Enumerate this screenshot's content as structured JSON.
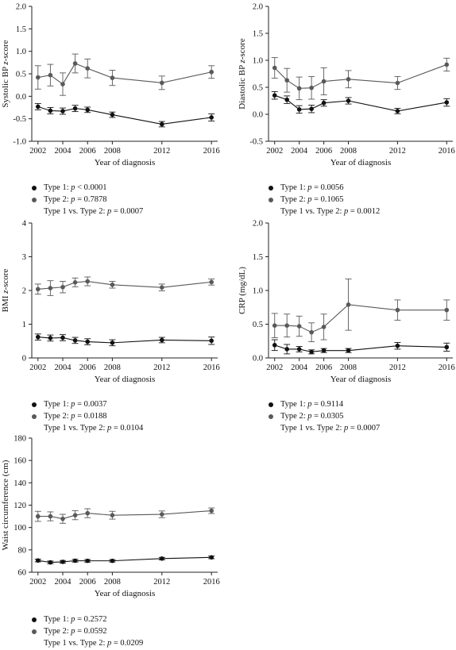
{
  "colors": {
    "type1": "#111111",
    "type2": "#595959",
    "axis": "#222222"
  },
  "chart_data": [
    {
      "id": "sbp",
      "type": "line",
      "ylabel": "Systolic BP z-score",
      "xlabel": "Year of diagnosis",
      "x": [
        2002,
        2003,
        2004,
        2005,
        2006,
        2008,
        2012,
        2016
      ],
      "xticks": [
        2002,
        2004,
        2006,
        2008,
        2012,
        2016
      ],
      "ylim": [
        -1.0,
        2.0
      ],
      "yticks": [
        "-1.0",
        "-0.5",
        "0.0",
        "0.5",
        "1.0",
        "1.5",
        "2.0"
      ],
      "series": [
        {
          "name": "Type 1",
          "values": [
            -0.23,
            -0.32,
            -0.33,
            -0.27,
            -0.3,
            -0.41,
            -0.62,
            -0.47
          ],
          "err": [
            0.07,
            0.07,
            0.07,
            0.07,
            0.06,
            0.06,
            0.06,
            0.08
          ]
        },
        {
          "name": "Type 2",
          "values": [
            0.42,
            0.47,
            0.27,
            0.73,
            0.62,
            0.41,
            0.3,
            0.54
          ],
          "err": [
            0.26,
            0.24,
            0.25,
            0.21,
            0.21,
            0.17,
            0.15,
            0.14
          ]
        }
      ],
      "legend": [
        "Type 1: p < 0.0001",
        "Type 2: p = 0.7878",
        "Type 1 vs. Type 2: p = 0.0007"
      ]
    },
    {
      "id": "dbp",
      "type": "line",
      "ylabel": "Diastolic BP z-score",
      "xlabel": "Year of diagnosis",
      "x": [
        2002,
        2003,
        2004,
        2005,
        2006,
        2008,
        2012,
        2016
      ],
      "xticks": [
        2002,
        2004,
        2006,
        2008,
        2012,
        2016
      ],
      "ylim": [
        -0.5,
        2.0
      ],
      "yticks": [
        "-0.5",
        "0.0",
        "0.5",
        "1.0",
        "1.5",
        "2.0"
      ],
      "series": [
        {
          "name": "Type 1",
          "values": [
            0.35,
            0.27,
            0.09,
            0.1,
            0.21,
            0.25,
            0.06,
            0.22
          ],
          "err": [
            0.07,
            0.07,
            0.07,
            0.07,
            0.06,
            0.06,
            0.05,
            0.07
          ]
        },
        {
          "name": "Type 2",
          "values": [
            0.86,
            0.63,
            0.48,
            0.49,
            0.61,
            0.65,
            0.58,
            0.92
          ],
          "err": [
            0.19,
            0.22,
            0.21,
            0.21,
            0.25,
            0.16,
            0.12,
            0.12
          ]
        }
      ],
      "legend": [
        "Type 1: p = 0.0056",
        "Type 2: p = 0.1065",
        "Type 1 vs. Type 2: p = 0.0012"
      ]
    },
    {
      "id": "bmi",
      "type": "line",
      "ylabel": "BMI z-score",
      "xlabel": "Year of diagnosis",
      "x": [
        2002,
        2003,
        2004,
        2005,
        2006,
        2008,
        2012,
        2016
      ],
      "xticks": [
        2002,
        2004,
        2006,
        2008,
        2012,
        2016
      ],
      "ylim": [
        0,
        4
      ],
      "yticks": [
        "0",
        "1",
        "2",
        "3",
        "4"
      ],
      "series": [
        {
          "name": "Type 1",
          "values": [
            0.62,
            0.59,
            0.6,
            0.52,
            0.48,
            0.45,
            0.53,
            0.51
          ],
          "err": [
            0.09,
            0.09,
            0.09,
            0.09,
            0.09,
            0.09,
            0.08,
            0.11
          ]
        },
        {
          "name": "Type 2",
          "values": [
            2.04,
            2.07,
            2.1,
            2.24,
            2.27,
            2.17,
            2.09,
            2.25
          ],
          "err": [
            0.15,
            0.22,
            0.17,
            0.13,
            0.13,
            0.1,
            0.1,
            0.09
          ]
        }
      ],
      "legend": [
        "Type 1: p = 0.0037",
        "Type 2: p = 0.0188",
        "Type 1 vs. Type 2: p = 0.0104"
      ]
    },
    {
      "id": "crp",
      "type": "line",
      "ylabel": "CRP (mg/dL)",
      "xlabel": "Year of diagnosis",
      "x": [
        2002,
        2003,
        2004,
        2005,
        2006,
        2008,
        2012,
        2016
      ],
      "xticks": [
        2002,
        2004,
        2006,
        2008,
        2012,
        2016
      ],
      "ylim": [
        0.0,
        2.0
      ],
      "yticks": [
        "0.0",
        "0.5",
        "1.0",
        "1.5",
        "2.0"
      ],
      "series": [
        {
          "name": "Type 1",
          "values": [
            0.19,
            0.13,
            0.13,
            0.09,
            0.11,
            0.11,
            0.18,
            0.16
          ],
          "err": [
            0.08,
            0.07,
            0.04,
            0.03,
            0.03,
            0.03,
            0.05,
            0.06
          ]
        },
        {
          "name": "Type 2",
          "values": [
            0.48,
            0.48,
            0.47,
            0.38,
            0.46,
            0.79,
            0.71,
            0.71
          ],
          "err": [
            0.18,
            0.17,
            0.15,
            0.14,
            0.19,
            0.38,
            0.15,
            0.15
          ]
        }
      ],
      "legend": [
        "Type 1: p = 0.9114",
        "Type 2: p = 0.0305",
        "Type 1 vs. Type 2: p = 0.0007"
      ]
    },
    {
      "id": "waist",
      "type": "line",
      "ylabel": "Waist circumference (cm)",
      "xlabel": "Year of diagnosis",
      "x": [
        2002,
        2003,
        2004,
        2005,
        2006,
        2008,
        2012,
        2016
      ],
      "xticks": [
        2002,
        2004,
        2006,
        2008,
        2012,
        2016
      ],
      "ylim": [
        60,
        180
      ],
      "yticks": [
        "60",
        "80",
        "100",
        "120",
        "140",
        "160",
        "180"
      ],
      "series": [
        {
          "name": "Type 1",
          "values": [
            70.5,
            68.8,
            69.3,
            70.3,
            70.2,
            70.2,
            72.2,
            73.3
          ],
          "err": [
            1.2,
            1.2,
            1.2,
            1.2,
            1.2,
            1.1,
            1.1,
            1.2
          ]
        },
        {
          "name": "Type 2",
          "values": [
            110.0,
            110.0,
            107.8,
            111.0,
            112.8,
            111.0,
            111.8,
            115.0
          ],
          "err": [
            4.5,
            4.0,
            4.0,
            4.0,
            4.0,
            3.5,
            3.0,
            2.5
          ]
        }
      ],
      "legend": [
        "Type 1: p = 0.2572",
        "Type 2: p = 0.0592",
        "Type 1 vs. Type 2: p = 0.0209"
      ]
    }
  ]
}
